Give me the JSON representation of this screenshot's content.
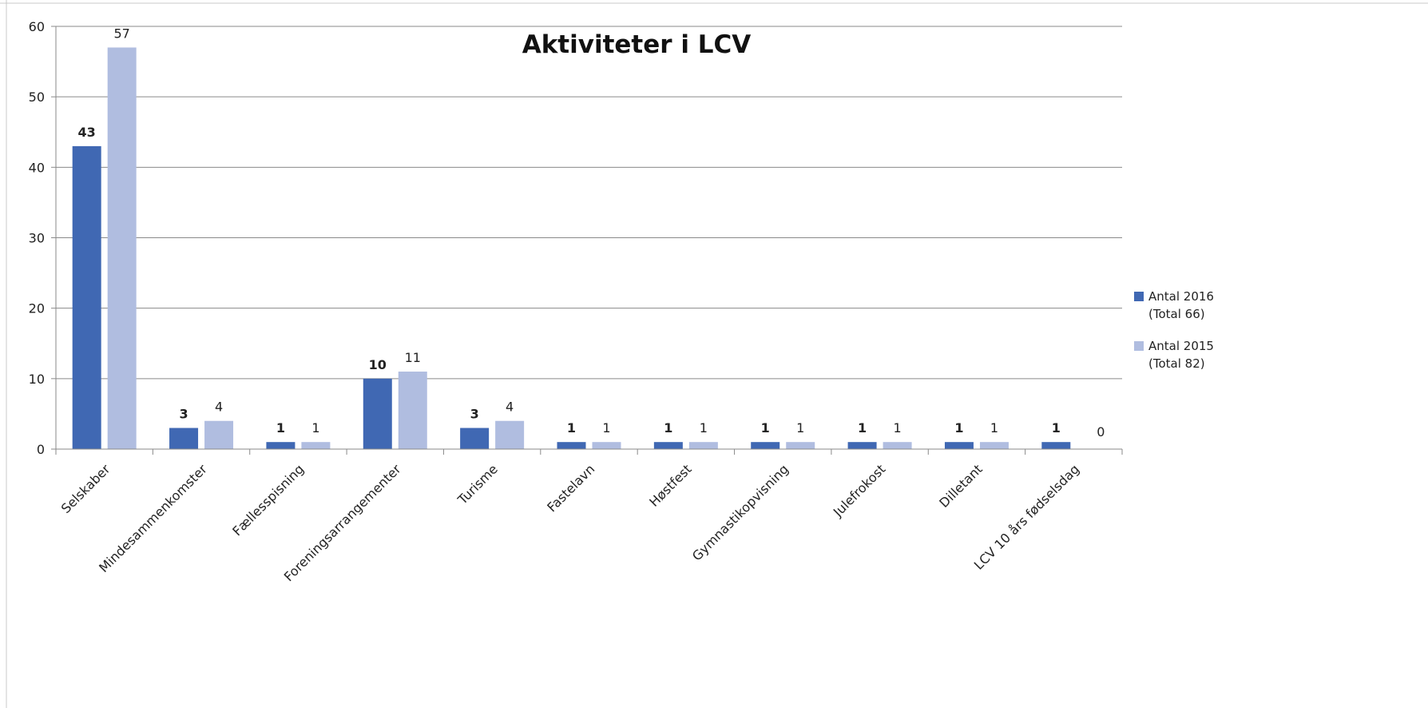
{
  "chart_data": {
    "type": "bar",
    "title": "Aktiviteter i LCV",
    "categories": [
      "Selskaber",
      "Mindesammenkomster",
      "Fællesspisning",
      "Foreningsarrangementer",
      "Turisme",
      "Fastelavn",
      "Høstfest",
      "Gymnastikopvisning",
      "Julefrokost",
      "Dilletant",
      "LCV 10 års fødselsdag"
    ],
    "series": [
      {
        "name": "Antal 2016 (Total 66)",
        "color": "#4068b3",
        "values": [
          43,
          3,
          1,
          10,
          3,
          1,
          1,
          1,
          1,
          1,
          1
        ]
      },
      {
        "name": "Antal 2015 (Total 82)",
        "color": "#b0bde0",
        "values": [
          57,
          4,
          1,
          11,
          4,
          1,
          1,
          1,
          1,
          1,
          0
        ]
      }
    ],
    "ylim": [
      0,
      60
    ],
    "yticks": [
      0,
      10,
      20,
      30,
      40,
      50,
      60
    ],
    "grid": true,
    "legend": "right"
  }
}
